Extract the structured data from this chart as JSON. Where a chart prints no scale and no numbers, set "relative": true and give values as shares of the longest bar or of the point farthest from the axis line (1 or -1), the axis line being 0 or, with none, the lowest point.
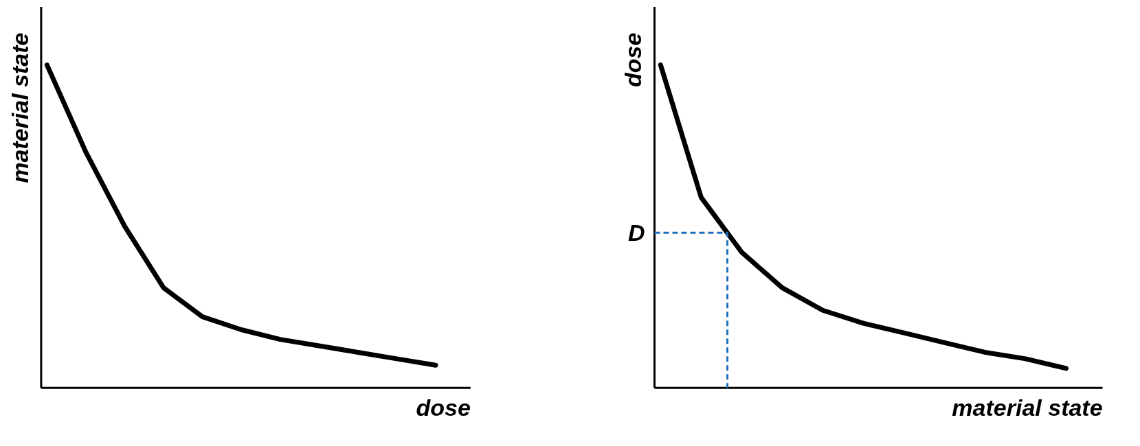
{
  "chart_data": [
    {
      "type": "line",
      "relative": true,
      "xlabel": "dose",
      "ylabel": "material state",
      "categories": [
        null,
        null,
        null,
        null,
        null,
        null,
        null,
        null,
        null,
        null,
        null
      ],
      "series": [
        {
          "color": "#000000",
          "values": [
            1.0,
            0.73,
            0.5,
            0.31,
            0.22,
            0.18,
            0.15,
            0.13,
            0.11,
            0.09,
            0.07
          ]
        }
      ]
    },
    {
      "type": "line",
      "relative": true,
      "xlabel": "material state",
      "ylabel": "dose",
      "categories": [
        null,
        null,
        null,
        null,
        null,
        null,
        null,
        null,
        null,
        null,
        null
      ],
      "series": [
        {
          "color": "#000000",
          "values": [
            1.0,
            0.59,
            0.42,
            0.31,
            0.24,
            0.2,
            0.17,
            0.14,
            0.11,
            0.09,
            0.06
          ]
        }
      ],
      "ref_lines": [
        {
          "axis": "y",
          "value": 0.48,
          "label": "D",
          "color": "#1f6fbf",
          "line_style": "dashed"
        }
      ]
    }
  ]
}
